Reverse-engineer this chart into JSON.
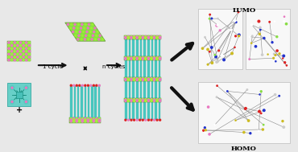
{
  "background_color": "#e8e8e8",
  "arrow_color": "#111111",
  "label_1cycle": "1 cycle",
  "label_ncycles": "n cycles",
  "label_homo": "HOMO",
  "label_lumo": "LUMO",
  "text_color": "#000000",
  "cyan_light": "#70d8d0",
  "cyan_pillar": "#48c8c0",
  "cyan_deep": "#30b0a8",
  "ldh_green": "#88dd44",
  "ldh_pink": "#e878c0",
  "ldh_yellow": "#ddcc44",
  "red": "#dd2222",
  "blue": "#2233cc",
  "yellow": "#ccbb22",
  "gray": "#999999",
  "white": "#ffffff",
  "black": "#000000",
  "pink_dot": "#ee88cc",
  "green_dot": "#55cc33"
}
